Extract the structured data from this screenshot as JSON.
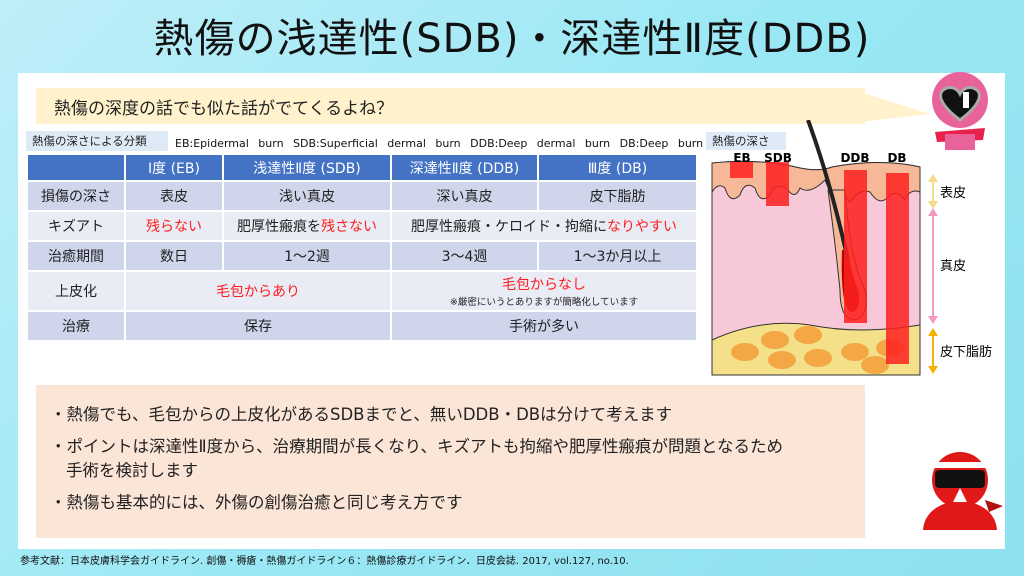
{
  "title": "熱傷の浅達性(SDB)・深達性Ⅱ度(DDB)",
  "speech": "熱傷の深度の話でも似た話がでてくるよね？",
  "table_label": "熱傷の深さによる分類",
  "abbreviations": "EB:Epidermal burn SDB:Superficial dermal burn DDB:Deep dermal burn DB:Deep burn",
  "table": {
    "headers": [
      "",
      "Ⅰ度 (EB)",
      "浅達性Ⅱ度 (SDB)",
      "深達性Ⅱ度 (DDB)",
      "Ⅲ度 (DB)"
    ],
    "depth": [
      "損傷の深さ",
      "表皮",
      "浅い真皮",
      "深い真皮",
      "皮下脂肪"
    ],
    "scar": {
      "label": "キズアト",
      "eb": "残らない",
      "sdb_a": "肥厚性瘢痕を",
      "sdb_b": "残さない",
      "ddb_a": "肥厚性瘢痕・ケロイド・拘縮に",
      "ddb_b": "なりやすい"
    },
    "healing": [
      "治癒期間",
      "数日",
      "1～2週",
      "3～4週",
      "1～3か月以上"
    ],
    "epithelization": {
      "label": "上皮化",
      "left": "毛包からあり",
      "right": "毛包からなし",
      "note": "※厳密にいうとありますが簡略化しています"
    },
    "treatment": {
      "label": "治療",
      "left": "保存",
      "right": "手術が多い"
    }
  },
  "diagram": {
    "label": "熱傷の深さ",
    "bars": [
      "EB",
      "SDB",
      "DDB",
      "DB"
    ],
    "layers": [
      "表皮",
      "真皮",
      "皮下脂肪"
    ],
    "burn_color": "#ff2020"
  },
  "bullets": [
    "・熱傷でも、毛包からの上皮化があるSDBまでと、無いDDB・DBは分けて考えます",
    "・ポイントは深達性Ⅱ度から、治療期間が長くなり、キズアトも拘縮や肥厚性瘢痕が問題となるため　手術を検討します",
    "・熱傷も基本的には、外傷の創傷治癒と同じ考え方です"
  ],
  "reference": "参考文献：日本皮膚科学会ガイドライン. 創傷・褥瘡・熱傷ガイドライン６：熱傷診療ガイドライン．日皮会誌. 2017, vol.127, no.10."
}
